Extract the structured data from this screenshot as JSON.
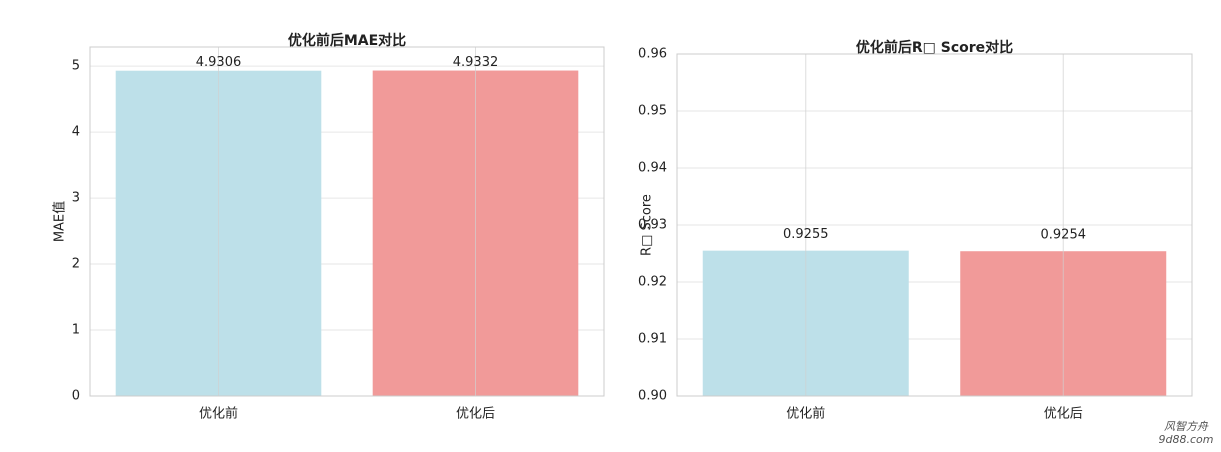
{
  "chart_data": [
    {
      "type": "bar",
      "title": "优化前后MAE对比",
      "ylabel": "MAE值",
      "categories": [
        "优化前",
        "优化后"
      ],
      "values": [
        4.9306,
        4.9332
      ],
      "colors": [
        "#bde0e9",
        "#f19a99"
      ],
      "ylim": [
        0,
        5.29
      ],
      "yticks": [
        0,
        1,
        2,
        3,
        4,
        5
      ],
      "grid": true
    },
    {
      "type": "bar",
      "title": "优化前后R□ Score对比",
      "ylabel": "R□ Score",
      "categories": [
        "优化前",
        "优化后"
      ],
      "values": [
        0.9255,
        0.9254
      ],
      "colors": [
        "#bde0e9",
        "#f19a99"
      ],
      "ylim": [
        0.9,
        0.96
      ],
      "yticks": [
        {
          "value": 0.9,
          "label": "0.90"
        },
        0.91,
        0.92,
        0.93,
        0.94,
        0.95,
        0.96
      ],
      "grid": true
    }
  ],
  "watermark": {
    "name": "风智方舟",
    "site": "9d88.com"
  }
}
